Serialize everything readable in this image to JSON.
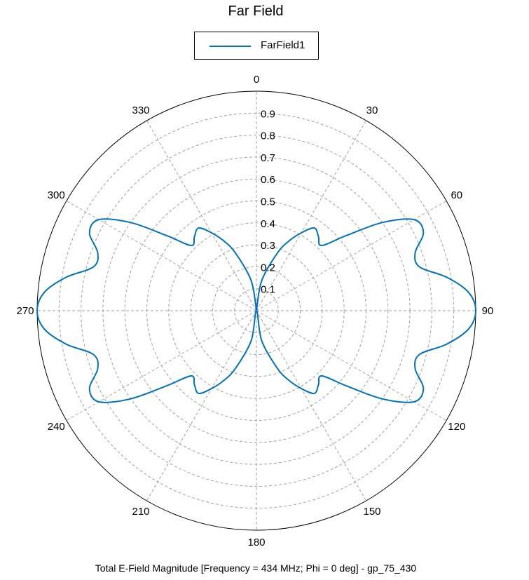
{
  "title": "Far Field",
  "footer": "Total E-Field Magnitude [Frequency = 434 MHz; Phi = 0 deg] - gp_75_430",
  "colors": {
    "series": "#0072bd",
    "grid": "#a0a0a0",
    "axis": "#000000"
  },
  "chart_data": {
    "type": "line",
    "subtype": "polar",
    "title": "Far Field",
    "theta_direction": "clockwise",
    "theta_zero": "top",
    "theta_ticks": [
      "0",
      "30",
      "60",
      "90",
      "120",
      "150",
      "180",
      "210",
      "240",
      "270",
      "300",
      "330"
    ],
    "r_ticks": [
      "0.1",
      "0.2",
      "0.3",
      "0.4",
      "0.5",
      "0.6",
      "0.7",
      "0.8",
      "0.9"
    ],
    "rlim": [
      0,
      1.0
    ],
    "grid": true,
    "legend": "top-center",
    "series": [
      {
        "name": "FarField1",
        "theta_deg": [
          0,
          10,
          20,
          25,
          30,
          35,
          40,
          45,
          50,
          55,
          60,
          65,
          70,
          75,
          80,
          85,
          90,
          95,
          100,
          105,
          110,
          115,
          120,
          125,
          130,
          135,
          140,
          145,
          150,
          155,
          160,
          170,
          180
        ],
        "r": [
          0.0,
          0.14,
          0.28,
          0.35,
          0.41,
          0.46,
          0.44,
          0.42,
          0.53,
          0.7,
          0.83,
          0.84,
          0.77,
          0.77,
          0.88,
          0.97,
          1.0,
          0.97,
          0.88,
          0.77,
          0.77,
          0.84,
          0.83,
          0.7,
          0.53,
          0.42,
          0.44,
          0.46,
          0.41,
          0.35,
          0.28,
          0.14,
          0.0
        ]
      }
    ]
  }
}
